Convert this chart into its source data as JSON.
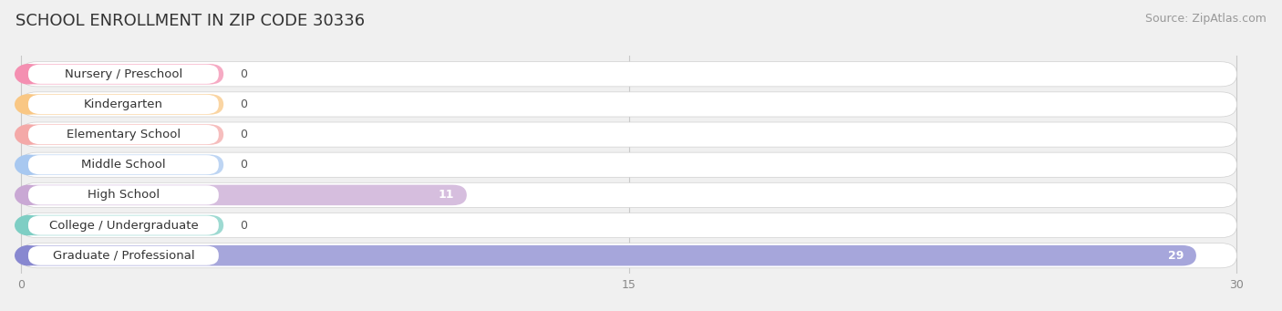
{
  "title": "SCHOOL ENROLLMENT IN ZIP CODE 30336",
  "source": "Source: ZipAtlas.com",
  "categories": [
    "Nursery / Preschool",
    "Kindergarten",
    "Elementary School",
    "Middle School",
    "High School",
    "College / Undergraduate",
    "Graduate / Professional"
  ],
  "values": [
    0,
    0,
    0,
    0,
    11,
    0,
    29
  ],
  "bar_colors": [
    "#f48fb1",
    "#f9c784",
    "#f4a9a8",
    "#a8c8f0",
    "#c9a8d4",
    "#7ecec4",
    "#8888d0"
  ],
  "label_colors": [
    "#f48fb1",
    "#f9c784",
    "#f4a9a8",
    "#a8c8f0",
    "#c9a8d4",
    "#7ecec4",
    "#8888d0"
  ],
  "xlim": [
    0,
    30
  ],
  "xticks": [
    0,
    15,
    30
  ],
  "background_color": "#f0f0f0",
  "title_fontsize": 13,
  "source_fontsize": 9,
  "label_fontsize": 9.5,
  "value_fontsize": 9,
  "tick_fontsize": 9
}
